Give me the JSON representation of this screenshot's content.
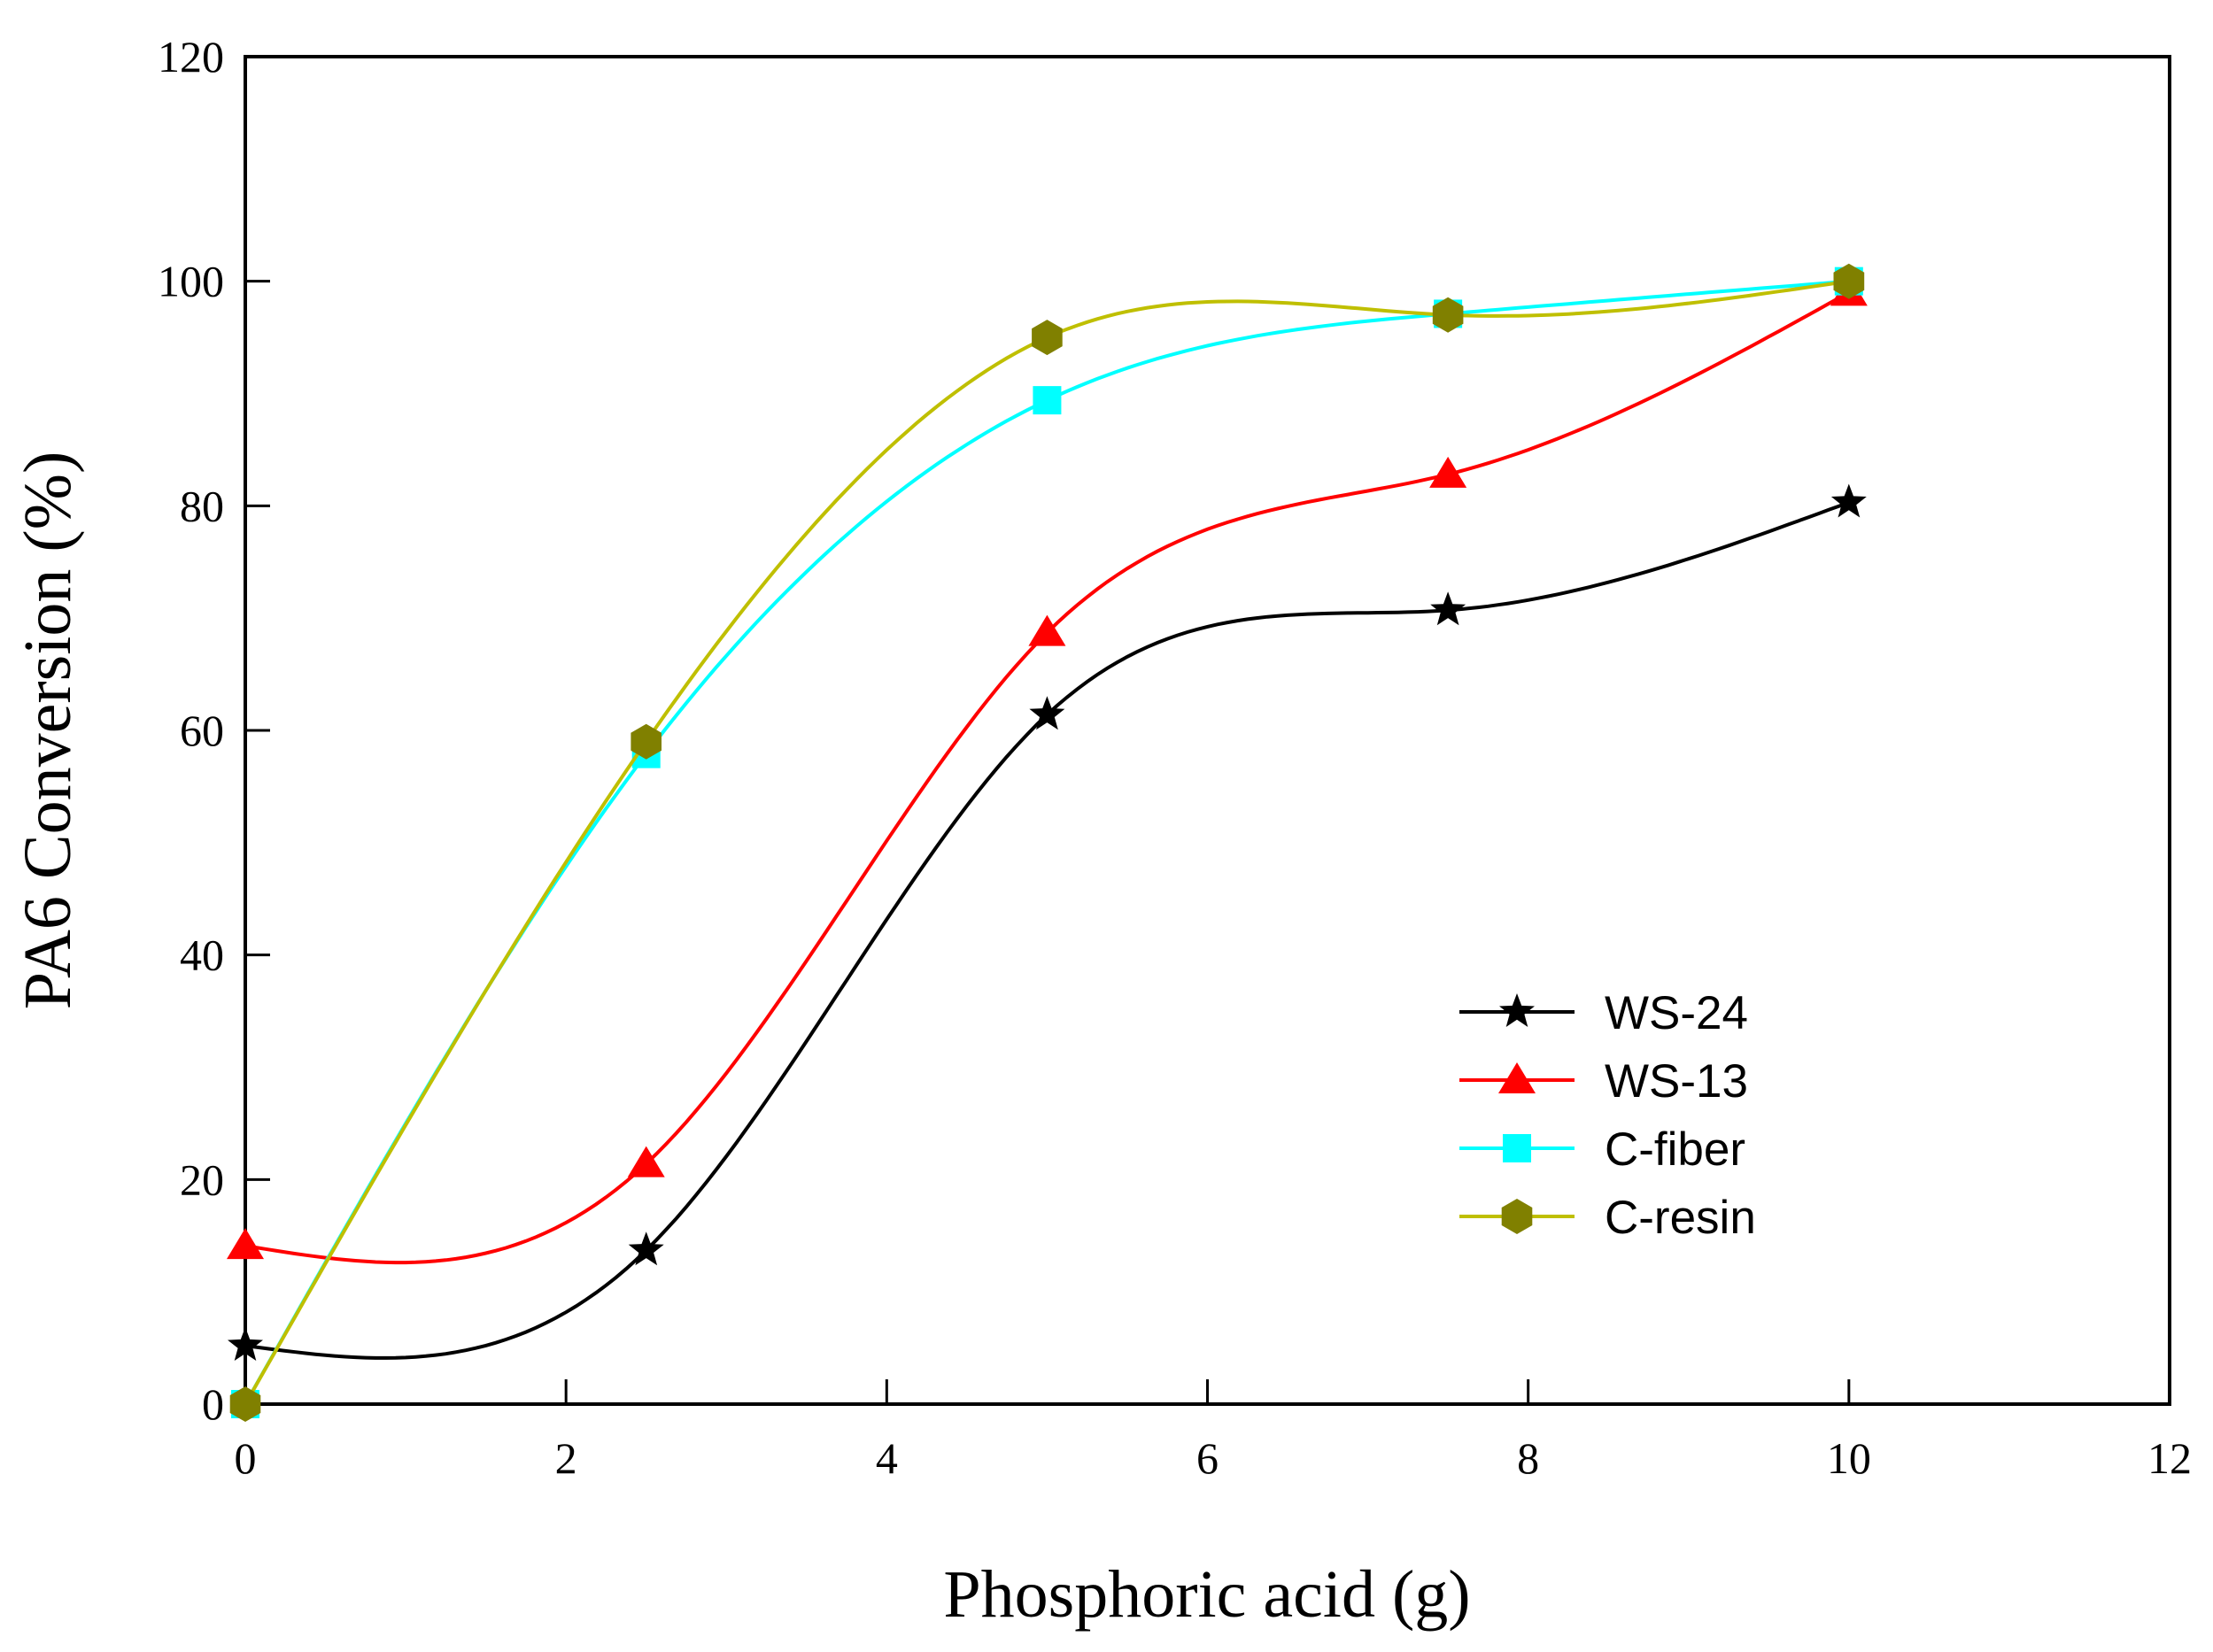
{
  "chart_data": {
    "type": "line",
    "title": "",
    "xlabel": "Phosphoric acid (g)",
    "ylabel": "PA6 Conversion (%)",
    "xlim": [
      0,
      12
    ],
    "ylim": [
      0,
      120
    ],
    "xticks": [
      0,
      2,
      4,
      6,
      8,
      10,
      12
    ],
    "yticks": [
      0,
      20,
      40,
      60,
      80,
      100,
      120
    ],
    "grid": false,
    "legend_position": "lower-right",
    "x": [
      0,
      2.5,
      5,
      7.5,
      10
    ],
    "series": [
      {
        "name": "WS-24",
        "marker": "star",
        "color": "#000000",
        "marker_color": "#000000",
        "values": [
          5.2,
          13.7,
          61.4,
          70.7,
          80.3
        ]
      },
      {
        "name": "WS-13",
        "marker": "triangle",
        "color": "#ff0000",
        "marker_color": "#ff0000",
        "values": [
          14.1,
          21.4,
          68.7,
          82.8,
          99.0
        ]
      },
      {
        "name": "C-fiber",
        "marker": "square",
        "color": "#00ffff",
        "marker_color": "#00ffff",
        "values": [
          0.0,
          57.9,
          89.4,
          97.1,
          100.0
        ]
      },
      {
        "name": "C-resin",
        "marker": "hexagon",
        "color": "#bfbf00",
        "marker_color": "#808000",
        "values": [
          0.0,
          59.0,
          95.0,
          97.0,
          100.0
        ]
      }
    ]
  }
}
